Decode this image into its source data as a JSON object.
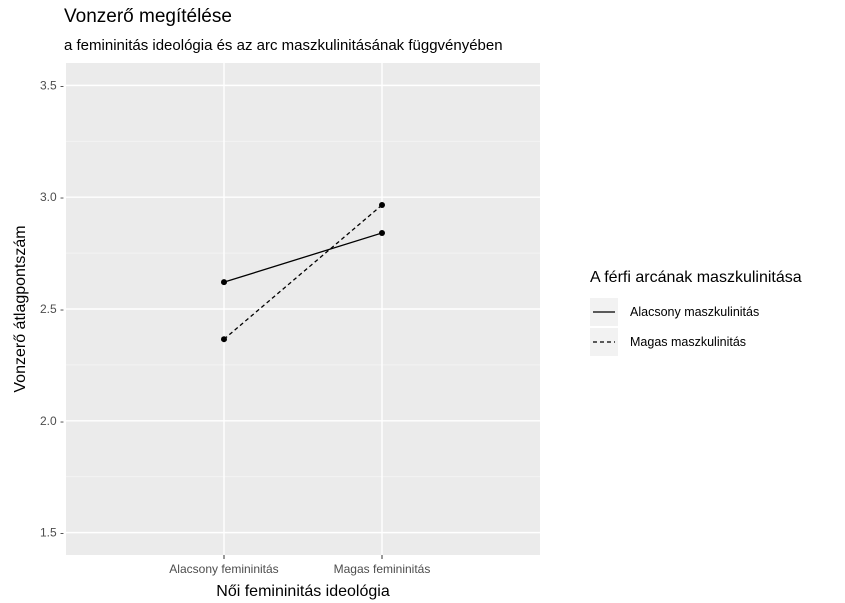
{
  "chart_data": {
    "type": "line",
    "title": "Vonzerő megítélése",
    "subtitle": "a femininitás ideológia és az arc maszkulinitásának függvényében",
    "xlabel": "Női femininitás ideológia",
    "ylabel": "Vonzerő átlagpontszám",
    "categories": [
      "Alacsony femininitás",
      "Magas femininitás"
    ],
    "ylim": [
      1.4,
      3.6
    ],
    "yticks": [
      1.5,
      2.0,
      2.5,
      3.0,
      3.5
    ],
    "ytick_labels": [
      "1.5 -",
      "2.0 -",
      "2.5 -",
      "3.0 -",
      "3.5 -"
    ],
    "grid": true,
    "legend_title": "A férfi arcának maszkulinitása",
    "legend_position": "right",
    "series": [
      {
        "name": "Alacsony maszkulinitás",
        "linestyle": "solid",
        "values": [
          2.62,
          2.84
        ]
      },
      {
        "name": "Magas maszkulinitás",
        "linestyle": "dashed",
        "values": [
          2.365,
          2.965
        ]
      }
    ],
    "colors": {
      "panel": "#ebebeb",
      "grid_major": "#ffffff",
      "grid_minor": "#f5f5f5",
      "line": "#000000"
    }
  }
}
